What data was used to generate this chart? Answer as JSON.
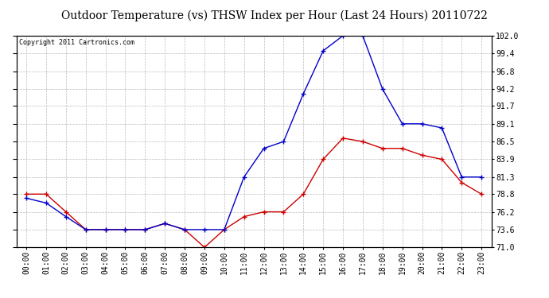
{
  "title": "Outdoor Temperature (vs) THSW Index per Hour (Last 24 Hours) 20110722",
  "copyright": "Copyright 2011 Cartronics.com",
  "hours": [
    "00:00",
    "01:00",
    "02:00",
    "03:00",
    "04:00",
    "05:00",
    "06:00",
    "07:00",
    "08:00",
    "09:00",
    "10:00",
    "11:00",
    "12:00",
    "13:00",
    "14:00",
    "15:00",
    "16:00",
    "17:00",
    "18:00",
    "19:00",
    "20:00",
    "21:00",
    "22:00",
    "23:00"
  ],
  "temp": [
    78.8,
    78.8,
    76.2,
    73.6,
    73.6,
    73.6,
    73.6,
    74.5,
    73.6,
    71.0,
    73.6,
    75.5,
    76.2,
    76.2,
    78.8,
    83.9,
    87.0,
    86.5,
    85.5,
    85.5,
    84.5,
    83.9,
    80.5,
    78.8
  ],
  "thsw": [
    78.2,
    77.5,
    75.5,
    73.6,
    73.6,
    73.6,
    73.6,
    74.5,
    73.6,
    73.6,
    73.6,
    81.3,
    85.5,
    86.5,
    93.5,
    99.8,
    102.0,
    102.0,
    94.2,
    89.1,
    89.1,
    88.5,
    81.3,
    81.3
  ],
  "ylim": [
    71.0,
    102.0
  ],
  "yticks": [
    71.0,
    73.6,
    76.2,
    78.8,
    81.3,
    83.9,
    86.5,
    89.1,
    91.7,
    94.2,
    96.8,
    99.4,
    102.0
  ],
  "temp_color": "#cc0000",
  "thsw_color": "#0000cc",
  "bg_color": "#ffffff",
  "plot_bg": "#ffffff",
  "grid_color": "#bbbbbb",
  "title_fontsize": 10,
  "tick_fontsize": 7,
  "copyright_fontsize": 6
}
